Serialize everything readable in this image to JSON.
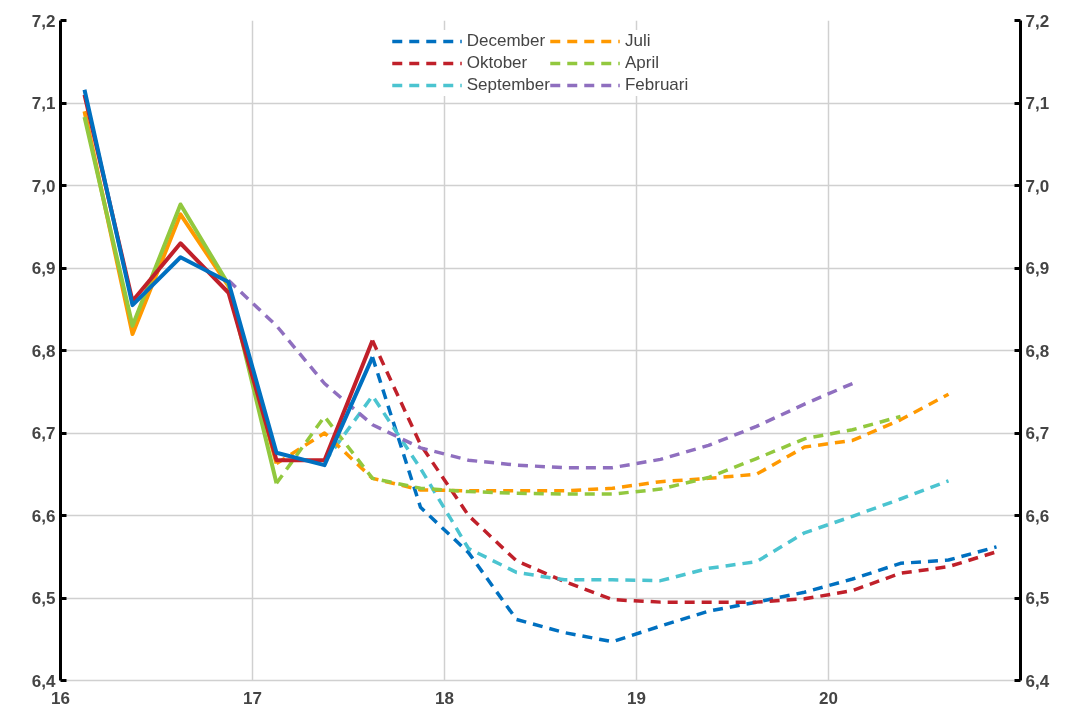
{
  "chart_data": {
    "type": "line",
    "xlim": [
      16,
      21
    ],
    "xticks": [
      16,
      17,
      18,
      19,
      20
    ],
    "ylim": [
      6.4,
      7.2
    ],
    "yticks": [
      {
        "value": 6.4,
        "label": "6,4"
      },
      {
        "value": 6.5,
        "label": "6,5"
      },
      {
        "value": 6.6,
        "label": "6,6"
      },
      {
        "value": 6.7,
        "label": "6,7"
      },
      {
        "value": 6.8,
        "label": "6,8"
      },
      {
        "value": 6.9,
        "label": "6,9"
      },
      {
        "value": 7.0,
        "label": "7,0"
      },
      {
        "value": 7.1,
        "label": "7,1"
      },
      {
        "value": 7.2,
        "label": "7,2"
      }
    ],
    "y2lim": [
      6.4,
      7.2
    ],
    "y2ticks": [
      {
        "value": 6.4,
        "label": "6,4"
      },
      {
        "value": 6.5,
        "label": "6,5"
      },
      {
        "value": 6.6,
        "label": "6,6"
      },
      {
        "value": 6.7,
        "label": "6,7"
      },
      {
        "value": 6.8,
        "label": "6,8"
      },
      {
        "value": 6.9,
        "label": "6,9"
      },
      {
        "value": 7.0,
        "label": "7,0"
      },
      {
        "value": 7.1,
        "label": "7,1"
      },
      {
        "value": 7.2,
        "label": "7,2"
      }
    ],
    "grid": true,
    "legend": "top",
    "marker": "none",
    "series": [
      {
        "name": "December",
        "color": "#0070c0",
        "line_style": "dashed",
        "x": [
          17.625,
          17.875,
          18.125,
          18.375,
          18.625,
          18.875,
          19.125,
          19.375,
          19.625,
          19.875,
          20.125,
          20.375,
          20.625,
          20.875
        ],
        "values": [
          6.792,
          6.61,
          6.555,
          6.474,
          6.458,
          6.447,
          6.466,
          6.484,
          6.495,
          6.507,
          6.523,
          6.542,
          6.546,
          6.562
        ]
      },
      {
        "name": "Oktober",
        "color": "#c0202a",
        "line_style": "dashed",
        "x": [
          17.625,
          17.875,
          18.125,
          18.375,
          18.625,
          18.875,
          19.125,
          19.375,
          19.625,
          19.875,
          20.125,
          20.375,
          20.625,
          20.875
        ],
        "values": [
          6.812,
          6.686,
          6.6,
          6.545,
          6.52,
          6.498,
          6.495,
          6.495,
          6.495,
          6.499,
          6.509,
          6.53,
          6.538,
          6.556
        ]
      },
      {
        "name": "September",
        "color": "#4bc4d0",
        "line_style": "dashed",
        "x": [
          17.375,
          17.625,
          17.875,
          18.125,
          18.375,
          18.625,
          18.875,
          19.125,
          19.375,
          19.625,
          19.875,
          20.125,
          20.375,
          20.625
        ],
        "values": [
          6.665,
          6.745,
          6.657,
          6.56,
          6.531,
          6.522,
          6.522,
          6.521,
          6.536,
          6.544,
          6.579,
          6.599,
          6.62,
          6.642
        ]
      },
      {
        "name": "Juli",
        "color": "#ff9900",
        "line_style": "dashed",
        "x": [
          17.125,
          17.375,
          17.625,
          17.875,
          18.125,
          18.375,
          18.625,
          18.875,
          19.125,
          19.375,
          19.625,
          19.875,
          20.125,
          20.375,
          20.625
        ],
        "values": [
          6.663,
          6.7,
          6.645,
          6.631,
          6.63,
          6.63,
          6.63,
          6.633,
          6.641,
          6.645,
          6.65,
          6.683,
          6.691,
          6.716,
          6.747
        ]
      },
      {
        "name": "April",
        "color": "#92c83e",
        "line_style": "dashed",
        "x": [
          17.125,
          17.375,
          17.625,
          17.875,
          18.125,
          18.375,
          18.625,
          18.875,
          19.125,
          19.375,
          19.625,
          19.875,
          20.125,
          20.375
        ],
        "values": [
          6.639,
          6.72,
          6.645,
          6.633,
          6.629,
          6.627,
          6.626,
          6.626,
          6.632,
          6.646,
          6.669,
          6.693,
          6.704,
          6.72
        ]
      },
      {
        "name": "Februari",
        "color": "#8f6fbf",
        "line_style": "dashed",
        "x": [
          16.875,
          17.125,
          17.375,
          17.625,
          17.875,
          18.125,
          18.375,
          18.625,
          18.875,
          19.125,
          19.375,
          19.625,
          19.875,
          20.125
        ],
        "values": [
          6.885,
          6.83,
          6.76,
          6.71,
          6.682,
          6.667,
          6.661,
          6.658,
          6.658,
          6.668,
          6.685,
          6.708,
          6.735,
          6.76
        ]
      },
      {
        "color": "#ff9900",
        "line_style": "solid",
        "x": [
          16.125,
          16.375,
          16.625,
          16.875,
          17.125
        ],
        "values": [
          7.09,
          6.82,
          6.965,
          6.878,
          6.663
        ]
      },
      {
        "color": "#92c83e",
        "line_style": "solid",
        "x": [
          16.125,
          16.375,
          16.625,
          16.875,
          17.125
        ],
        "values": [
          7.083,
          6.83,
          6.977,
          6.88,
          6.639
        ]
      },
      {
        "color": "#c0202a",
        "line_style": "solid",
        "x": [
          16.125,
          16.375,
          16.625,
          16.875,
          17.125,
          17.375,
          17.625
        ],
        "values": [
          7.11,
          6.86,
          6.93,
          6.87,
          6.667,
          6.667,
          6.812
        ]
      },
      {
        "color": "#0070c0",
        "line_style": "solid",
        "x": [
          16.125,
          16.375,
          16.625,
          16.875,
          17.125,
          17.375,
          17.625
        ],
        "values": [
          7.116,
          6.855,
          6.913,
          6.883,
          6.676,
          6.661,
          6.792
        ]
      }
    ]
  }
}
